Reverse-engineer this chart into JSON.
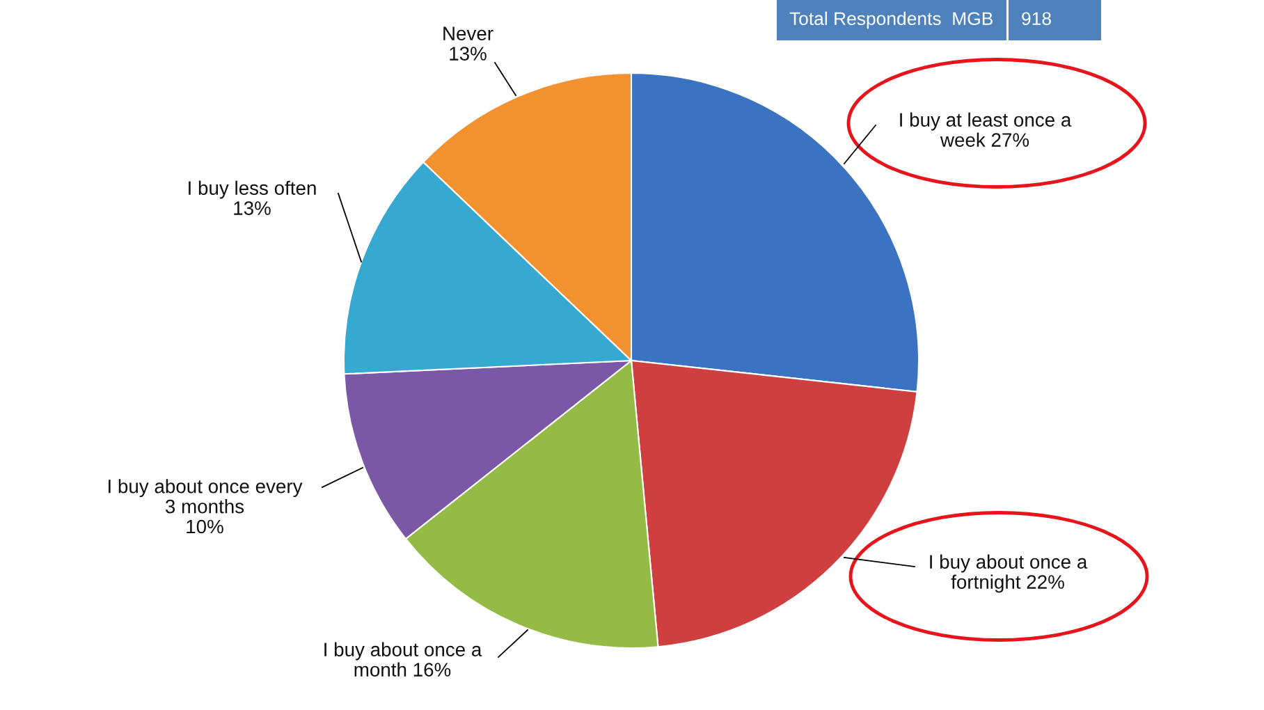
{
  "chart_data": {
    "type": "pie",
    "categories": [
      "I buy at least once a\nweek",
      "I buy about once a\nfortnight",
      "I buy about once a\nmonth",
      "I buy about once every\n3 months",
      "I buy less often",
      "Never"
    ],
    "values": [
      27,
      22,
      16,
      10,
      13,
      13
    ],
    "colors": [
      "#3b73c2",
      "#cf3f3f",
      "#93bb45",
      "#7a58a5",
      "#37a8d0",
      "#f29130"
    ],
    "value_labels": [
      "27%",
      "22%",
      "16%",
      "10%",
      "13%",
      "13%"
    ],
    "annotations": [
      "Total Respondents  MGB",
      "918"
    ]
  }
}
